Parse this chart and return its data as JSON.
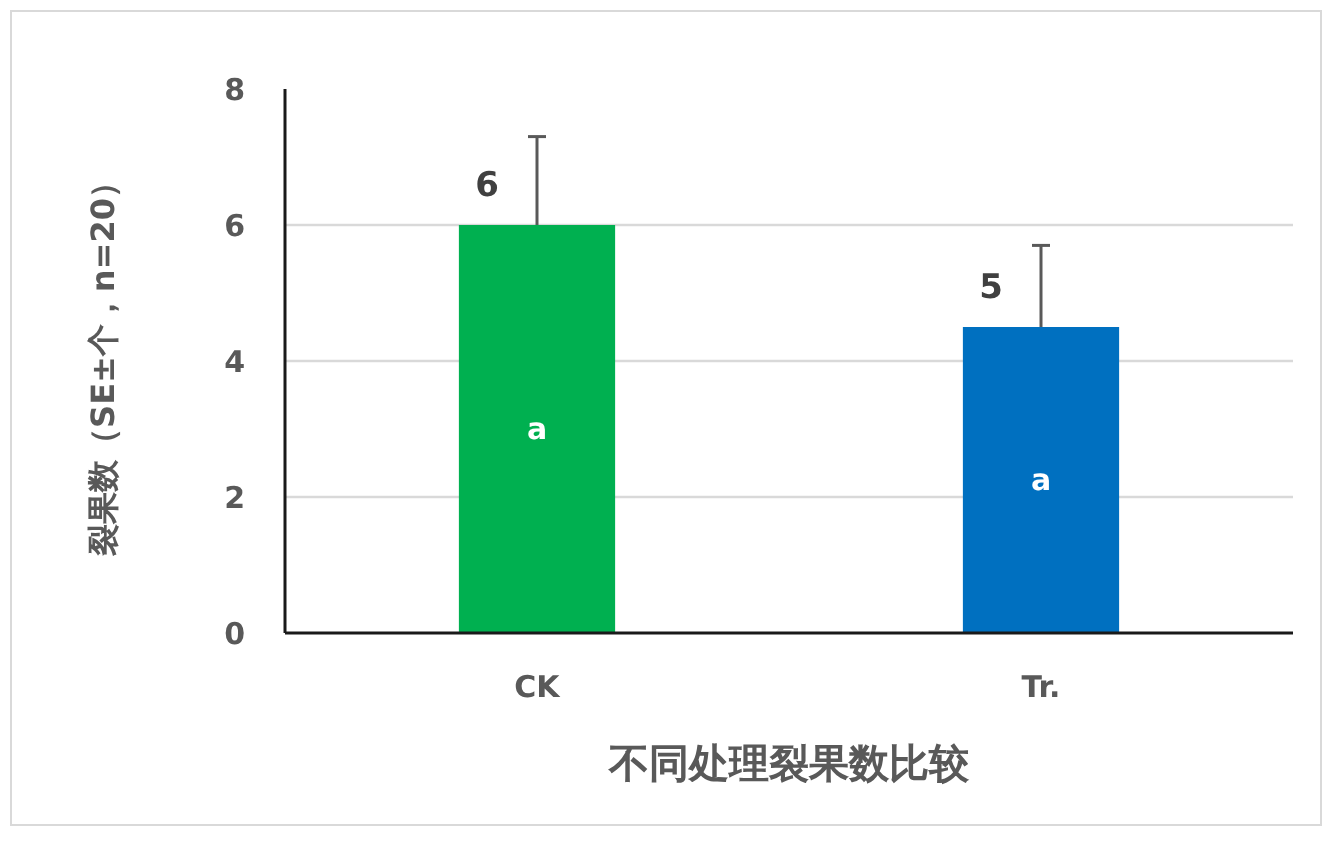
{
  "chart_data": {
    "type": "bar",
    "categories": [
      "CK",
      "Tr."
    ],
    "values": [
      6.0,
      4.5
    ],
    "colors": [
      "#00b050",
      "#0070c0"
    ],
    "errors": [
      [
        6.0,
        7.3
      ],
      [
        4.5,
        5.7
      ]
    ],
    "value_labels": [
      "6",
      "5"
    ],
    "annotations": [
      "a",
      "a"
    ],
    "xlabel": "不同处理裂果数比较",
    "ylabel": "裂果数（SE±个，n=20）",
    "ylim": [
      0,
      8
    ],
    "yticks": [
      0,
      2,
      4,
      6,
      8
    ],
    "grid": "y"
  }
}
